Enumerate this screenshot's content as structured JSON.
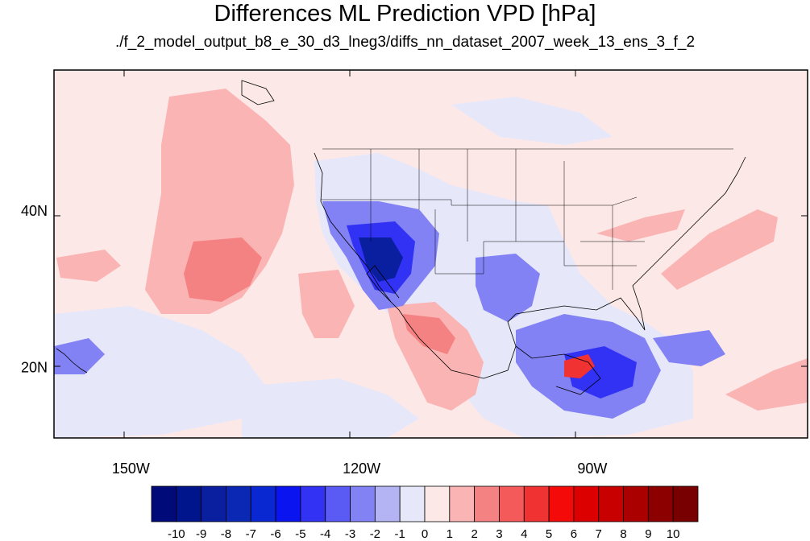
{
  "title": "Differences ML Prediction VPD [hPa]",
  "subtitle": "./f_2_model_output_b8_e_30_d3_lneg3/diffs_nn_dataset_2007_week_13_ens_3_f_2",
  "map": {
    "lon_range": [
      -160,
      -62
    ],
    "lat_range": [
      11,
      58
    ],
    "lon_ticks": [
      {
        "value": -150,
        "label": "150W"
      },
      {
        "value": -120,
        "label": "120W"
      },
      {
        "value": -90,
        "label": "90W"
      }
    ],
    "lat_ticks": [
      {
        "value": 40,
        "label": "40N"
      },
      {
        "value": 20,
        "label": "20N"
      }
    ]
  },
  "colorbar": {
    "labels": [
      "-10",
      "-9",
      "-8",
      "-7",
      "-6",
      "-5",
      "-4",
      "-3",
      "-2",
      "-1",
      "0",
      "1",
      "2",
      "3",
      "4",
      "5",
      "6",
      "7",
      "8",
      "9",
      "10"
    ],
    "colors": [
      "#000a78",
      "#00148c",
      "#0a1ea0",
      "#0a28b4",
      "#0a28d2",
      "#0a14f0",
      "#3232f5",
      "#5a5af5",
      "#8282f5",
      "#b4b4f5",
      "#e6e8fa",
      "#fde8e8",
      "#fbb4b4",
      "#f58282",
      "#f55a5a",
      "#f03232",
      "#f50a0a",
      "#dc0000",
      "#c80000",
      "#aa0000",
      "#8c0000",
      "#780000"
    ]
  },
  "background_color": "#fde8e8"
}
